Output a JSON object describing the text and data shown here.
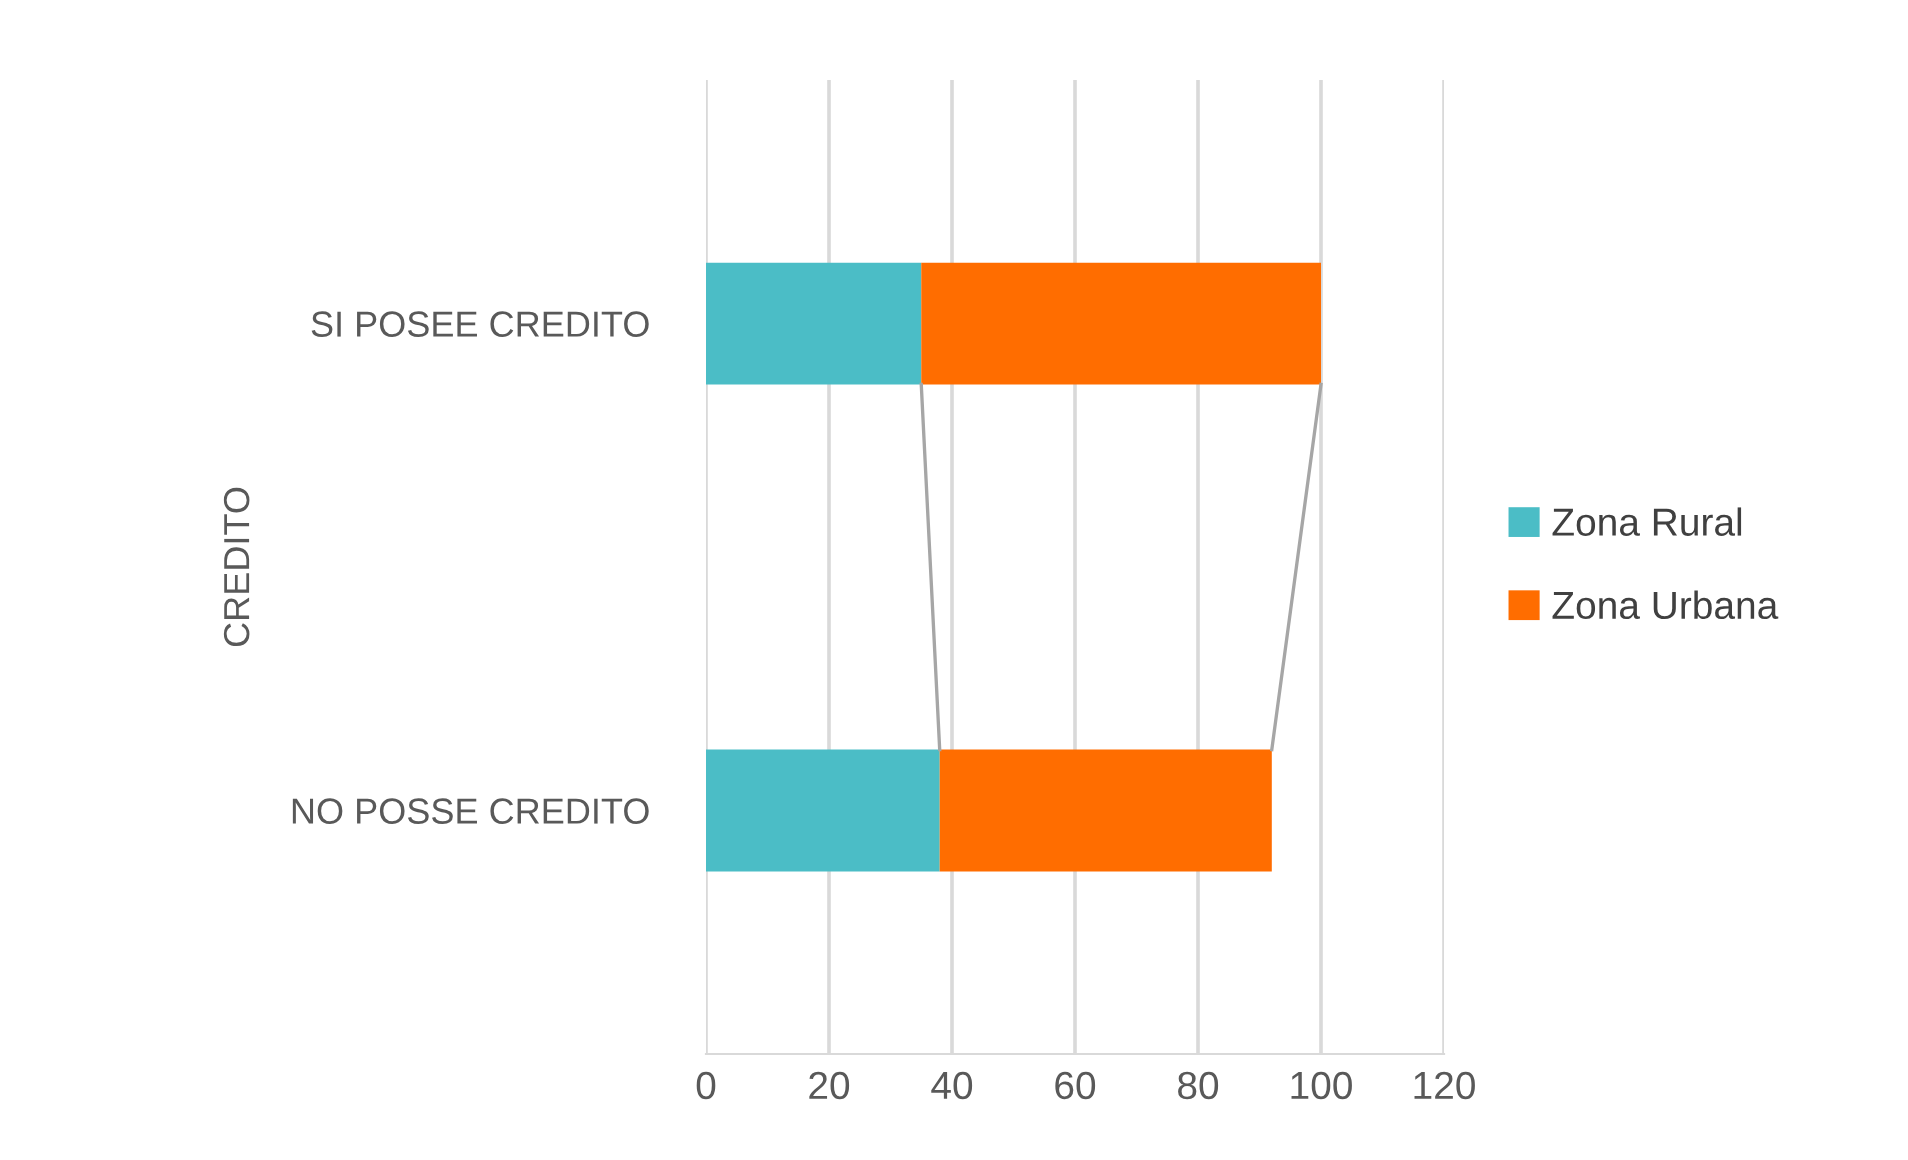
{
  "chart_data": {
    "type": "bar",
    "orientation": "horizontal",
    "stacked": true,
    "ylabel": "CREDITO",
    "categories": [
      "SI POSEE CREDITO",
      "NO POSSE CREDITO"
    ],
    "series": [
      {
        "name": "Zona Rural",
        "color": "#4bbdc6",
        "values": [
          35,
          38
        ]
      },
      {
        "name": "Zona Urbana",
        "color": "#ff6d00",
        "values": [
          65,
          54
        ]
      }
    ],
    "xlim": [
      0,
      120
    ],
    "xticks": [
      0,
      20,
      40,
      60,
      80,
      100,
      120
    ],
    "grid": "x",
    "legend": "right"
  }
}
